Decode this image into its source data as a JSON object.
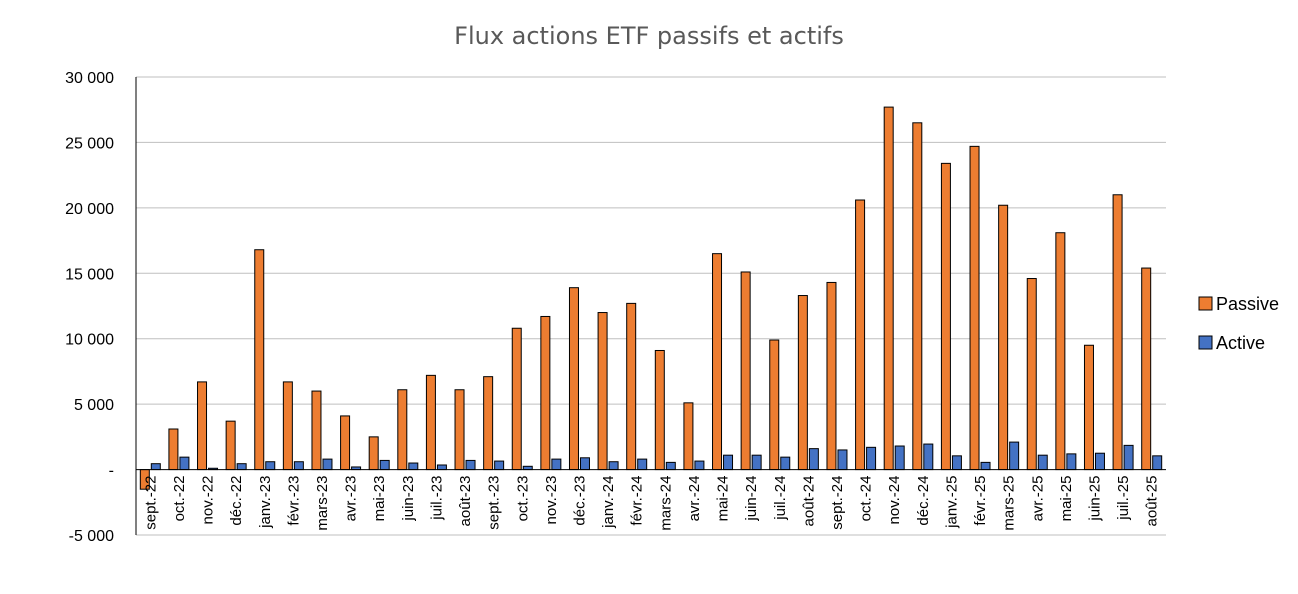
{
  "chart_data": {
    "type": "bar",
    "title": "Flux actions ETF passifs et actifs",
    "xlabel": "",
    "ylabel": "",
    "ylim": [
      -5000,
      30000
    ],
    "yticks": [
      {
        "value": 30000,
        "label": "30 000"
      },
      {
        "value": 25000,
        "label": "25 000"
      },
      {
        "value": 20000,
        "label": "20 000"
      },
      {
        "value": 15000,
        "label": "15 000"
      },
      {
        "value": 10000,
        "label": "10 000"
      },
      {
        "value": 5000,
        "label": "5 000"
      },
      {
        "value": 0,
        "label": "-"
      },
      {
        "value": -5000,
        "label": "-5 000"
      }
    ],
    "grid": true,
    "legend_position": "right",
    "categories": [
      "sept.-22",
      "oct.-22",
      "nov.-22",
      "déc.-22",
      "janv.-23",
      "févr.-23",
      "mars-23",
      "avr.-23",
      "mai-23",
      "juin-23",
      "juil.-23",
      "août-23",
      "sept.-23",
      "oct.-23",
      "nov.-23",
      "déc.-23",
      "janv.-24",
      "févr.-24",
      "mars-24",
      "avr.-24",
      "mai-24",
      "juin-24",
      "juil.-24",
      "août-24",
      "sept.-24",
      "oct.-24",
      "nov.-24",
      "déc.-24",
      "janv.-25",
      "févr.-25",
      "mars-25",
      "avr.-25",
      "mai-25",
      "juin-25",
      "juil.-25",
      "août-25"
    ],
    "series": [
      {
        "name": "Passive",
        "color": "#ED7D31",
        "values": [
          -1500,
          3100,
          6700,
          3700,
          16800,
          6700,
          6000,
          4100,
          2500,
          6100,
          7200,
          6100,
          7100,
          10800,
          11700,
          13900,
          12000,
          12700,
          9100,
          5100,
          16500,
          15100,
          9900,
          13300,
          14300,
          20600,
          27700,
          26500,
          23400,
          24700,
          20200,
          14600,
          18100,
          9500,
          21000,
          15400
        ]
      },
      {
        "name": "Active",
        "color": "#4472C4",
        "values": [
          450,
          950,
          100,
          450,
          600,
          600,
          800,
          200,
          700,
          500,
          350,
          700,
          650,
          250,
          800,
          900,
          600,
          800,
          550,
          650,
          1100,
          1100,
          950,
          1600,
          1500,
          1700,
          1800,
          1950,
          1050,
          550,
          2100,
          1100,
          1200,
          1250,
          1850,
          1050
        ]
      }
    ]
  }
}
